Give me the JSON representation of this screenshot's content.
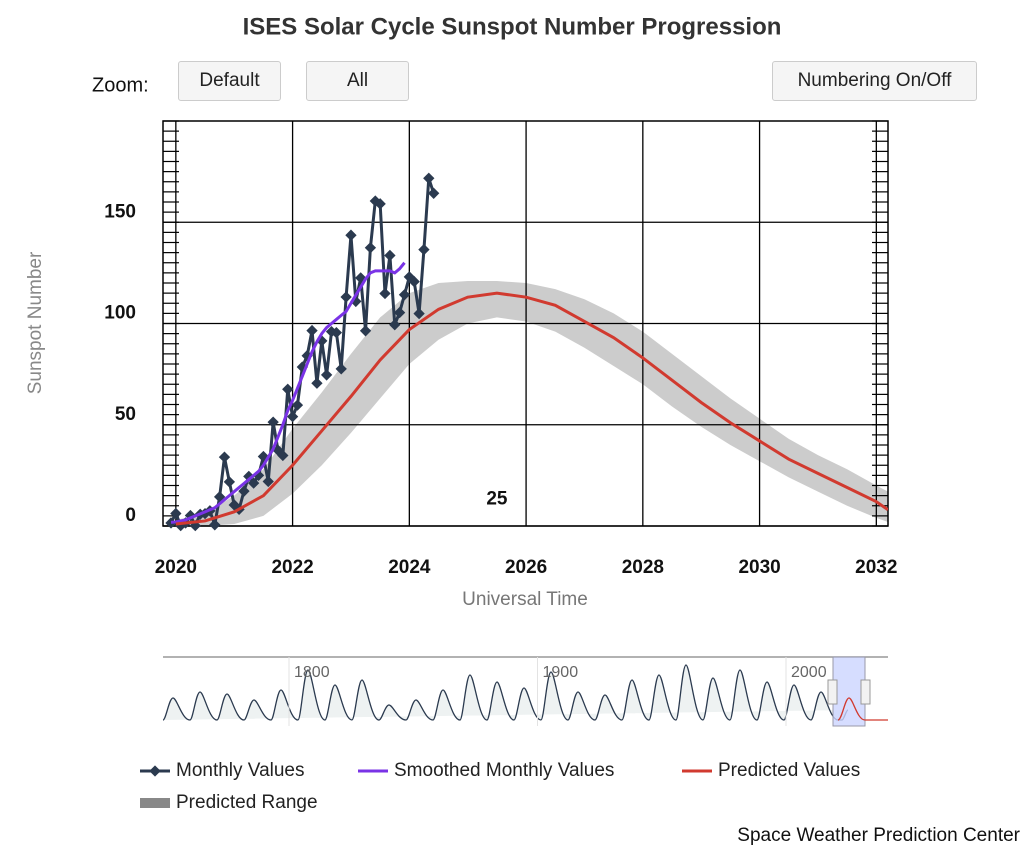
{
  "chart_data": {
    "type": "line",
    "title": "ISES Solar Cycle Sunspot Number Progression",
    "zoom_label": "Zoom:",
    "buttons": [
      "Default",
      "All",
      "Numbering On/Off"
    ],
    "xlabel": "Universal Time",
    "ylabel": "Sunspot Number",
    "xlim": [
      2019.78,
      2032.2
    ],
    "xticks": [
      2020,
      2022,
      2024,
      2026,
      2028,
      2030,
      2032
    ],
    "ylim": [
      0,
      200
    ],
    "yticks": [
      0,
      50,
      100,
      150
    ],
    "yminorticks": [
      0,
      5,
      10,
      15,
      20,
      25,
      30,
      35,
      40,
      45,
      50,
      55,
      60,
      65,
      70,
      75,
      80,
      85,
      90,
      95,
      100,
      105,
      110,
      115,
      120,
      125,
      130,
      135,
      140,
      145,
      150,
      155,
      160,
      165,
      170,
      175,
      180,
      185,
      190,
      195,
      200
    ],
    "grid": true,
    "series": [
      {
        "name": "Monthly Values",
        "color": "#2b3a4f",
        "kind": "markers",
        "x": [
          2019.917,
          2020,
          2020.083,
          2020.167,
          2020.25,
          2020.333,
          2020.417,
          2020.5,
          2020.583,
          2020.667,
          2020.75,
          2020.833,
          2020.917,
          2021,
          2021.083,
          2021.167,
          2021.25,
          2021.333,
          2021.417,
          2021.5,
          2021.583,
          2021.667,
          2021.75,
          2021.833,
          2021.917,
          2022,
          2022.083,
          2022.167,
          2022.25,
          2022.333,
          2022.417,
          2022.5,
          2022.583,
          2022.667,
          2022.75,
          2022.833,
          2022.917,
          2023,
          2023.083,
          2023.167,
          2023.25,
          2023.333,
          2023.417,
          2023.5,
          2023.583,
          2023.667,
          2023.75,
          2023.833,
          2023.917,
          2024,
          2024.083,
          2024.167,
          2024.25,
          2024.333,
          2024.417
        ],
        "values": [
          1.5,
          6.2,
          0.2,
          1.5,
          5.2,
          0.2,
          5.8,
          6.1,
          7.5,
          0.6,
          14.4,
          34.0,
          21.8,
          10.4,
          8.2,
          17.2,
          24.5,
          21.2,
          25.0,
          34.3,
          22.0,
          51.3,
          37.4,
          34.8,
          67.5,
          54.0,
          59.7,
          78.5,
          84.1,
          96.5,
          70.5,
          91.4,
          74.6,
          96.0,
          95.5,
          77.6,
          113.1,
          143.6,
          110.9,
          122.5,
          96.4,
          137.4,
          160.5,
          159.1,
          114.8,
          133.6,
          99.4,
          105.4,
          114.2,
          123.0,
          120.7,
          104.9,
          136.5,
          171.7,
          164.3
        ]
      },
      {
        "name": "Smoothed Monthly Values",
        "color": "#7a33e6",
        "kind": "line",
        "x": [
          2019.917,
          2020,
          2020.083,
          2020.167,
          2020.25,
          2020.333,
          2020.417,
          2020.5,
          2020.583,
          2020.667,
          2020.75,
          2020.833,
          2020.917,
          2021,
          2021.083,
          2021.167,
          2021.25,
          2021.333,
          2021.417,
          2021.5,
          2021.583,
          2021.667,
          2021.75,
          2021.833,
          2021.917,
          2022,
          2022.083,
          2022.167,
          2022.25,
          2022.333,
          2022.417,
          2022.5,
          2022.583,
          2022.667,
          2022.75,
          2022.833,
          2022.917,
          2023,
          2023.083,
          2023.167,
          2023.25,
          2023.333,
          2023.417,
          2023.5,
          2023.583,
          2023.667,
          2023.75,
          2023.833,
          2023.917
        ],
        "values": [
          1.8,
          2,
          2.5,
          3,
          4,
          5,
          6,
          7,
          8,
          9,
          11,
          13,
          15,
          17,
          19,
          21,
          23,
          25,
          27,
          30,
          34,
          38,
          44,
          50,
          57,
          62,
          68,
          74,
          80,
          86,
          91,
          95,
          98,
          100,
          102,
          104,
          106,
          110,
          114,
          118,
          122,
          125,
          126,
          126,
          126,
          126,
          125,
          127,
          130
        ]
      },
      {
        "name": "Predicted Values",
        "color": "#d13a2f",
        "kind": "line",
        "x": [
          2020,
          2020.5,
          2021,
          2021.5,
          2022,
          2022.5,
          2023,
          2023.5,
          2024,
          2024.5,
          2025,
          2025.5,
          2026,
          2026.5,
          2027,
          2027.5,
          2028,
          2028.5,
          2029,
          2029.5,
          2030,
          2030.5,
          2031,
          2031.5,
          2032,
          2032.2
        ],
        "values": [
          1,
          2.5,
          7,
          15,
          30,
          47,
          64,
          82,
          97,
          107,
          113,
          115,
          113,
          109,
          101,
          93,
          83,
          72,
          61,
          51,
          42,
          33,
          26,
          19,
          12,
          8
        ]
      },
      {
        "name": "Predicted Range",
        "color": "#cccccc",
        "kind": "range",
        "x": [
          2020,
          2020.5,
          2021,
          2021.5,
          2022,
          2022.5,
          2023,
          2023.5,
          2024,
          2024.5,
          2025,
          2025.5,
          2026,
          2026.5,
          2027,
          2027.5,
          2028,
          2028.5,
          2029,
          2029.5,
          2030,
          2030.5,
          2031,
          2031.5,
          2032,
          2032.2
        ],
        "low": [
          0,
          0,
          1,
          5,
          16,
          30,
          46,
          63,
          80,
          92,
          100,
          103,
          101,
          96,
          88,
          79,
          70,
          59,
          49,
          40,
          32,
          24,
          17,
          10,
          4,
          2
        ],
        "high": [
          3,
          6,
          15,
          28,
          48,
          66,
          85,
          103,
          115,
          120,
          121,
          121,
          120,
          117,
          112,
          105,
          96,
          85,
          74,
          63,
          53,
          43,
          35,
          28,
          20,
          17
        ]
      }
    ],
    "annotations": [
      {
        "text": "25",
        "x": 2025.5,
        "y": 13
      }
    ],
    "navigator": {
      "xticks": [
        1800,
        1900,
        2000
      ]
    },
    "credit": "Space Weather Prediction Center"
  }
}
